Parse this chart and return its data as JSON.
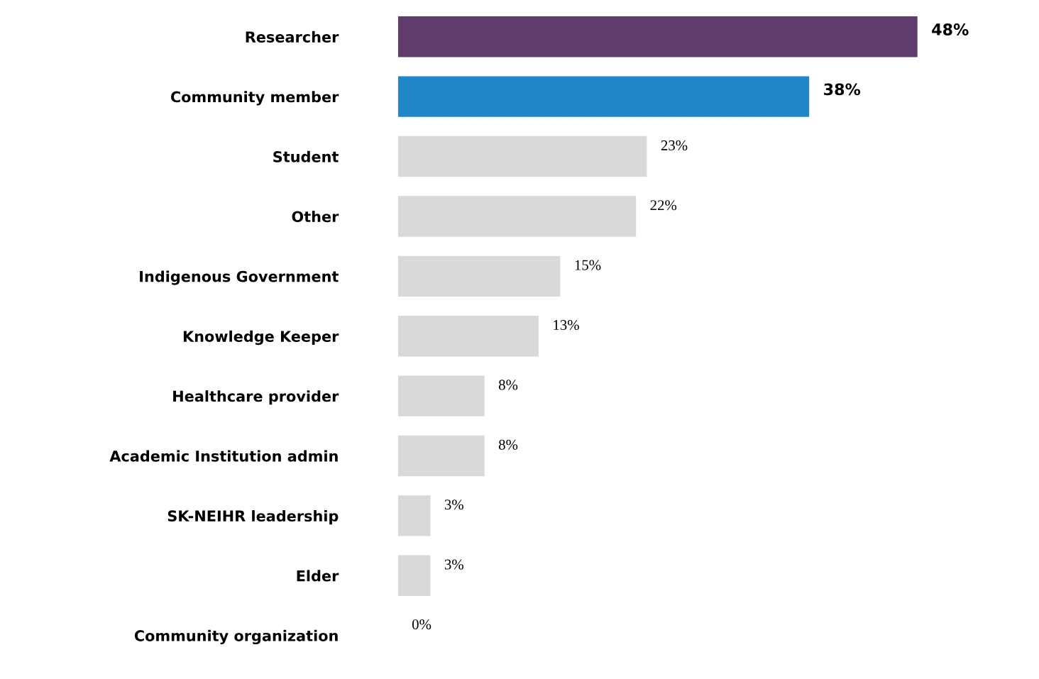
{
  "chart_data": {
    "type": "bar",
    "orientation": "horizontal",
    "categories": [
      "Researcher",
      "Community member",
      "Student",
      "Other",
      "Indigenous Government",
      "Knowledge Keeper",
      "Healthcare provider",
      "Academic Institution admin",
      "SK-NEIHR leadership",
      "Elder",
      "Community organization"
    ],
    "values": [
      48,
      38,
      23,
      22,
      15,
      13,
      8,
      8,
      3,
      3,
      0
    ],
    "value_labels": [
      "48%",
      "38%",
      "23%",
      "22%",
      "15%",
      "13%",
      "8%",
      "8%",
      "3%",
      "3%",
      "0%"
    ],
    "colors": [
      "#5f3b6e",
      "#1f87c8",
      "#d9d9d9",
      "#d9d9d9",
      "#d9d9d9",
      "#d9d9d9",
      "#d9d9d9",
      "#d9d9d9",
      "#d9d9d9",
      "#d9d9d9",
      "#d9d9d9"
    ],
    "grid": false,
    "legend": false
  }
}
